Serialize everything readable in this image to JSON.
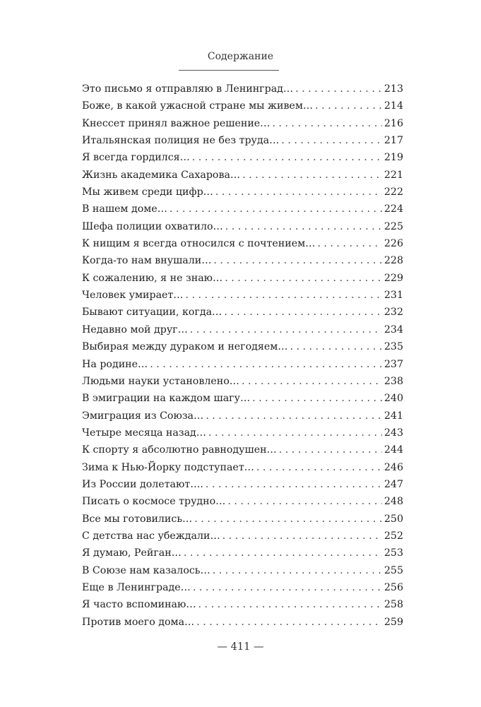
{
  "header": {
    "title": "Содержание"
  },
  "toc": [
    {
      "title": "Это письмо я отправляю в Ленинград…",
      "page": "213"
    },
    {
      "title": "Боже, в какой ужасной стране мы живем…",
      "page": "214"
    },
    {
      "title": "Кнессет принял важное решение…",
      "page": "216"
    },
    {
      "title": "Итальянская полиция не без труда…",
      "page": "217"
    },
    {
      "title": "Я всегда гордился…",
      "page": "219"
    },
    {
      "title": "Жизнь академика Сахарова…",
      "page": "221"
    },
    {
      "title": "Мы живем среди цифр…",
      "page": "222"
    },
    {
      "title": "В нашем доме…",
      "page": "224"
    },
    {
      "title": "Шефа полиции охватило…",
      "page": "225"
    },
    {
      "title": "К нищим я всегда относился с почтением…",
      "page": "226"
    },
    {
      "title": "Когда-то нам внушали…",
      "page": "228"
    },
    {
      "title": "К сожалению, я не знаю…",
      "page": "229"
    },
    {
      "title": "Человек умирает…",
      "page": "231"
    },
    {
      "title": "Бывают ситуации, когда…",
      "page": "232"
    },
    {
      "title": "Недавно мой друг…",
      "page": "234"
    },
    {
      "title": "Выбирая между дураком и негодяем…",
      "page": "235"
    },
    {
      "title": "На родине…",
      "page": "237"
    },
    {
      "title": "Людьми науки установлено…",
      "page": "238"
    },
    {
      "title": "В эмиграции на каждом шагу…",
      "page": "240"
    },
    {
      "title": "Эмиграция из Союза…",
      "page": "241"
    },
    {
      "title": "Четыре месяца назад…",
      "page": "243"
    },
    {
      "title": "К спорту я абсолютно равнодушен…",
      "page": "244"
    },
    {
      "title": "Зима к Нью-Йорку подступает…",
      "page": "246"
    },
    {
      "title": "Из России долетают….",
      "page": "247"
    },
    {
      "title": "Писать о космосе трудно…",
      "page": "248"
    },
    {
      "title": "Все мы готовились…",
      "page": "250"
    },
    {
      "title": "С детства нас убеждали…",
      "page": "252"
    },
    {
      "title": "Я думаю, Рейган…",
      "page": "253"
    },
    {
      "title": "В Союзе нам казалось…",
      "page": "255"
    },
    {
      "title": "Еще в Ленинграде…",
      "page": "256"
    },
    {
      "title": "Я часто вспоминаю…",
      "page": "258"
    },
    {
      "title": "Против моего дома…",
      "page": "259"
    }
  ],
  "footer": {
    "page_number": "— 411 —"
  }
}
